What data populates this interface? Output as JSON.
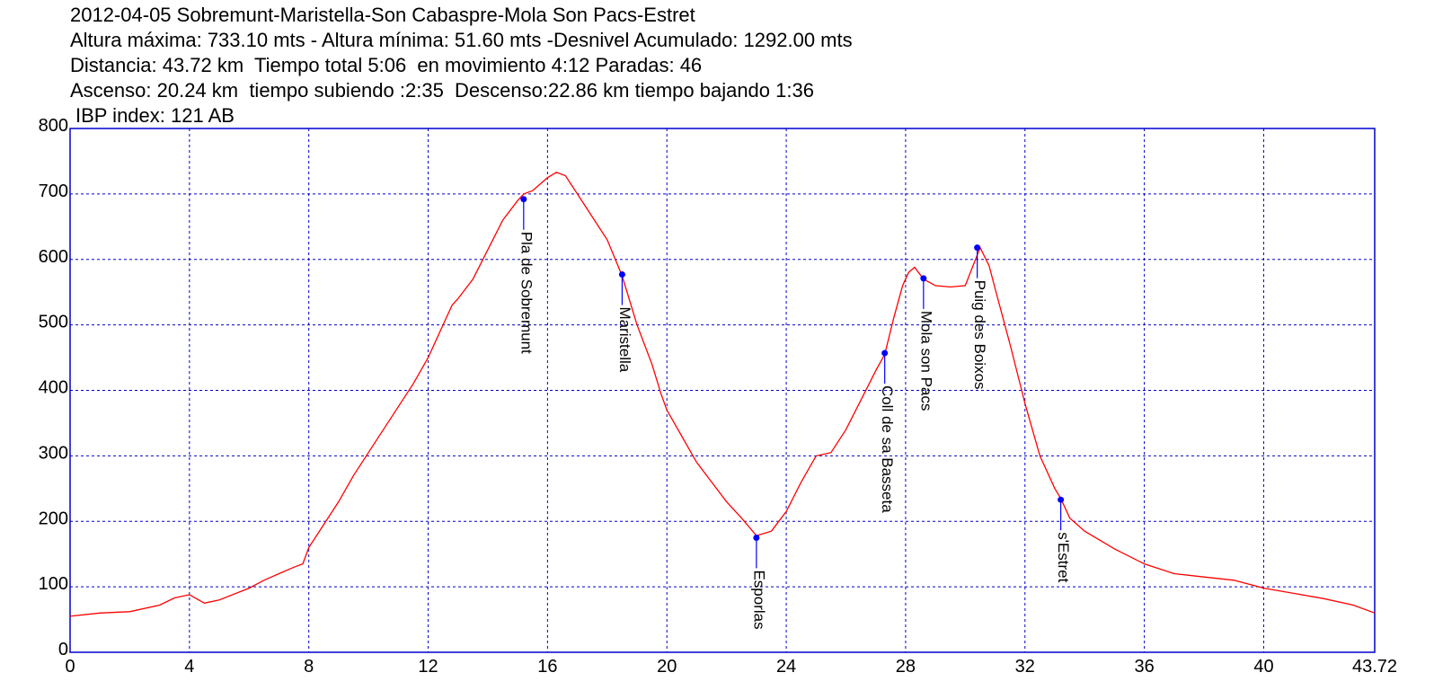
{
  "header": {
    "line1": "2012-04-05 Sobremunt-Maristella-Son Cabaspre-Mola Son Pacs-Estret",
    "line2": "Altura máxima: 733.10 mts - Altura mínima: 51.60 mts -Desnivel Acumulado: 1292.00 mts",
    "line3": "Distancia: 43.72 km  Tiempo total 5:06  en movimiento 4:12 Paradas: 46",
    "line4": "Ascenso: 20.24 km  tiempo subiendo :2:35  Descenso:22.86 km tiempo bajando 1:36",
    "line5": "IBP index: 121 AB"
  },
  "chart_data": {
    "type": "line",
    "title": "2012-04-05 Sobremunt-Maristella-Son Cabaspre-Mola Son Pacs-Estret",
    "xlabel": "",
    "ylabel": "",
    "xlim": [
      0,
      43.72
    ],
    "ylim": [
      0,
      800
    ],
    "x_ticks": [
      "0",
      "4",
      "8",
      "12",
      "16",
      "20",
      "24",
      "28",
      "32",
      "36",
      "40",
      "43.72"
    ],
    "x_tick_values": [
      0,
      4,
      8,
      12,
      16,
      20,
      24,
      28,
      32,
      36,
      40,
      43.72
    ],
    "y_ticks": [
      "0",
      "100",
      "200",
      "300",
      "400",
      "500",
      "600",
      "700",
      "800"
    ],
    "y_tick_values": [
      0,
      100,
      200,
      300,
      400,
      500,
      600,
      700,
      800
    ],
    "grid": true,
    "colors": {
      "line": "#ff0000",
      "grid": "#0000cc",
      "frame": "#0000cc",
      "waypoint": "#0000ff"
    },
    "series": [
      {
        "x": [
          0,
          1,
          2,
          3,
          3.5,
          4,
          4.5,
          5,
          6,
          6.5,
          7,
          7.5,
          7.8,
          8,
          8.5,
          9,
          9.5,
          10,
          10.5,
          11,
          11.5,
          12,
          12.5,
          12.8,
          13,
          13.5,
          14,
          14.5,
          15,
          15.2,
          15.5,
          16,
          16.3,
          16.6,
          17,
          17.5,
          18,
          18.5,
          19,
          19.5,
          19.8,
          20,
          20.5,
          21,
          21.5,
          22,
          22.5,
          23,
          23.5,
          24,
          24.5,
          25,
          25.5,
          26,
          26.5,
          27,
          27.3,
          27.6,
          27.9,
          28.1,
          28.3,
          28.6,
          29,
          29.5,
          30,
          30.3,
          30.5,
          30.8,
          31,
          31.5,
          32,
          32.5,
          33,
          33.2,
          33.5,
          34,
          35,
          36,
          37,
          38,
          39,
          40,
          41,
          42,
          43,
          43.72
        ],
        "y": [
          55,
          60,
          62,
          72,
          83,
          88,
          75,
          80,
          98,
          110,
          120,
          130,
          135,
          160,
          195,
          230,
          270,
          305,
          340,
          375,
          410,
          450,
          500,
          530,
          540,
          570,
          615,
          660,
          690,
          700,
          705,
          725,
          733,
          728,
          700,
          665,
          630,
          575,
          500,
          440,
          395,
          370,
          330,
          290,
          260,
          230,
          205,
          178,
          185,
          215,
          260,
          300,
          305,
          340,
          385,
          430,
          455,
          510,
          560,
          580,
          588,
          570,
          560,
          558,
          560,
          595,
          618,
          590,
          555,
          470,
          380,
          300,
          250,
          235,
          205,
          185,
          158,
          135,
          120,
          115,
          110,
          98,
          90,
          82,
          72,
          60
        ]
      }
    ],
    "waypoints": [
      {
        "x": 15.2,
        "y": 692,
        "label": "Pla de Sobremunt"
      },
      {
        "x": 18.5,
        "y": 577,
        "label": "Maristella"
      },
      {
        "x": 23.0,
        "y": 175,
        "label": "Esporlas"
      },
      {
        "x": 27.3,
        "y": 457,
        "label": "Coll de sa Basseta"
      },
      {
        "x": 28.6,
        "y": 571,
        "label": "Mola son Pacs"
      },
      {
        "x": 30.4,
        "y": 618,
        "label": "Puig des Boixos"
      },
      {
        "x": 33.2,
        "y": 233,
        "label": "s'Estret"
      }
    ]
  }
}
